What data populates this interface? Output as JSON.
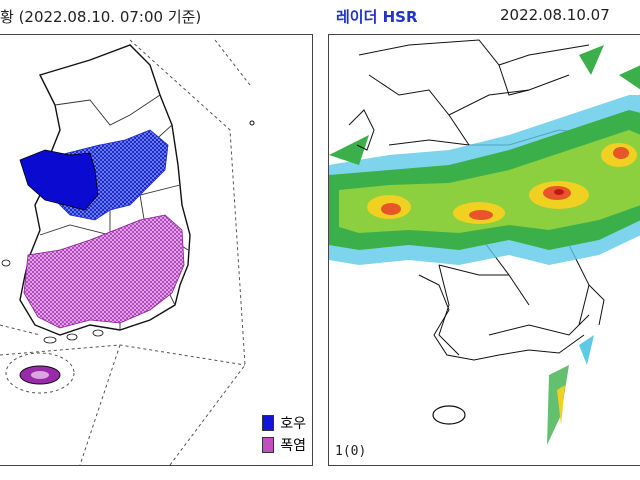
{
  "left_panel": {
    "title": "황 (2022.08.10. 07:00 기준)",
    "legend": [
      {
        "label": "호우",
        "color": "#1414d8"
      },
      {
        "label": "폭염",
        "color": "#c050c0"
      }
    ]
  },
  "right_panel": {
    "title_radar": "레이더 HSR",
    "timestamp": "2022.08.10.07",
    "frame_label": "1(0)"
  },
  "colors": {
    "heavy_rain_warning": "#0a0ad0",
    "heavy_rain_advisory": "#3a5ae0",
    "heatwave": "#c060c8",
    "heatwave_severe": "#8a1a9a",
    "coast": "#111111"
  }
}
